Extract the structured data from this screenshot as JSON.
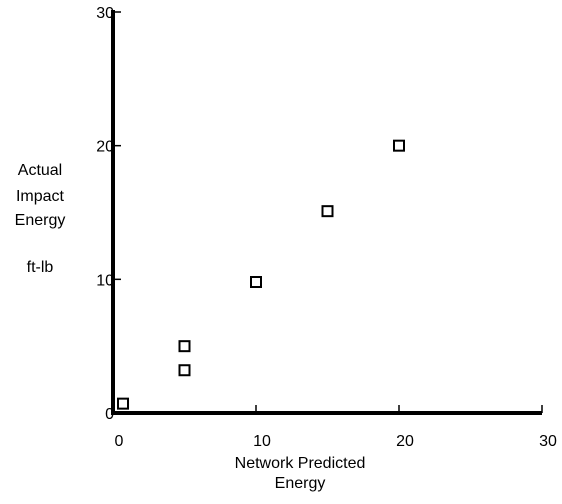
{
  "chart_data": {
    "type": "scatter",
    "title": "",
    "xlabel": [
      "Network Predicted",
      "Energy"
    ],
    "ylabel": [
      "Actual",
      "Impact",
      "Energy",
      "",
      "ft-lb"
    ],
    "xlim": [
      0,
      30
    ],
    "ylim": [
      0,
      30
    ],
    "x_ticks": [
      0,
      10,
      20,
      30
    ],
    "y_ticks": [
      0,
      10,
      20,
      30
    ],
    "grid": false,
    "legend": "none",
    "marker": "hollow-square",
    "points": [
      {
        "x": 0.7,
        "y": 0.7
      },
      {
        "x": 5,
        "y": 3.2
      },
      {
        "x": 5,
        "y": 5
      },
      {
        "x": 10,
        "y": 9.8
      },
      {
        "x": 15,
        "y": 15.1
      },
      {
        "x": 20,
        "y": 20
      }
    ]
  }
}
